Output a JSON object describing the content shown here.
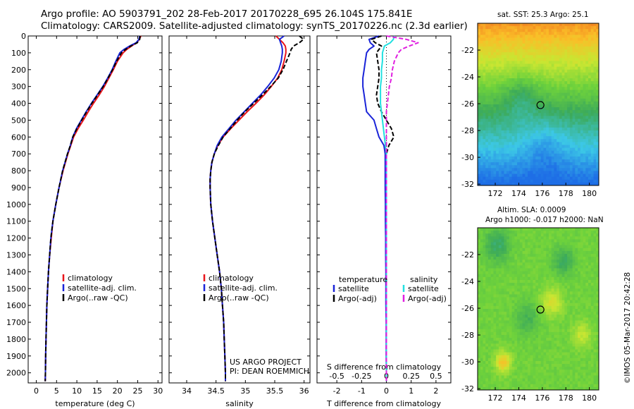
{
  "header": {
    "line1": "Argo profile: AO 5903791_202 28-Feb-2017 20170228_695 26.104S 175.841E",
    "line2": "Climatology: CARS2009. Satellite-adjusted climatology: synTS_20170226.nc (2.3d earlier)"
  },
  "colors": {
    "climatology": "#e8141a",
    "satellite": "#1a24d8",
    "argo": "#000000",
    "salinity_satellite": "#22e0e0",
    "salinity_argo": "#e020e0"
  },
  "chart_data": [
    {
      "type": "line",
      "id": "temperature",
      "xlabel": "temperature (deg C)",
      "xlim": [
        -2,
        31
      ],
      "ylim": [
        2060,
        0
      ],
      "x_ticks": [
        "0",
        "5",
        "10",
        "15",
        "20",
        "25",
        "30"
      ],
      "y_ticks": [
        "0",
        "100",
        "200",
        "300",
        "400",
        "500",
        "600",
        "700",
        "800",
        "900",
        "1000",
        "1100",
        "1200",
        "1300",
        "1400",
        "1500",
        "1600",
        "1700",
        "1800",
        "1900",
        "2000"
      ],
      "depth": [
        0,
        20,
        40,
        60,
        80,
        100,
        150,
        200,
        250,
        300,
        350,
        400,
        450,
        500,
        550,
        600,
        650,
        700,
        800,
        900,
        1000,
        1100,
        1200,
        1300,
        1400,
        1500,
        1600,
        1700,
        1800,
        1900,
        2000,
        2050
      ],
      "series": [
        {
          "name": "climatology",
          "values": [
            25.8,
            25.4,
            24.7,
            23.5,
            22.3,
            21.4,
            20.0,
            19.0,
            17.9,
            16.8,
            15.5,
            14.1,
            12.8,
            11.6,
            10.3,
            9.2,
            8.5,
            7.8,
            6.6,
            5.6,
            4.8,
            4.1,
            3.7,
            3.3,
            3.0,
            2.8,
            2.6,
            2.5,
            2.4,
            2.3,
            2.25,
            2.2
          ]
        },
        {
          "name": "satellite-adj. clim.",
          "values": [
            25.5,
            25.3,
            24.6,
            23.0,
            21.6,
            20.6,
            19.6,
            18.7,
            17.6,
            16.4,
            15.0,
            13.6,
            12.3,
            11.1,
            9.9,
            9.0,
            8.4,
            7.7,
            6.5,
            5.6,
            4.8,
            4.1,
            3.6,
            3.3,
            3.0,
            2.8,
            2.6,
            2.5,
            2.4,
            2.3,
            2.25,
            2.2
          ]
        },
        {
          "name": "Argo(..raw -QC)",
          "values": [
            25.6,
            25.5,
            24.9,
            23.3,
            22.0,
            21.0,
            19.8,
            18.8,
            17.7,
            16.5,
            15.1,
            13.7,
            12.4,
            11.2,
            10.0,
            9.0,
            8.4,
            7.7,
            6.5,
            5.6,
            4.8,
            4.1,
            3.6,
            3.3,
            3.0,
            2.8,
            2.6,
            2.5,
            2.4,
            2.3,
            2.25,
            2.2
          ]
        }
      ],
      "legend_position": "lower-center"
    },
    {
      "type": "line",
      "id": "salinity",
      "xlabel": "salinity",
      "xlim": [
        33.7,
        36.1
      ],
      "ylim": [
        2060,
        0
      ],
      "x_ticks": [
        "34",
        "34.5",
        "35",
        "35.5",
        "36"
      ],
      "depth": [
        0,
        20,
        40,
        60,
        80,
        100,
        150,
        200,
        250,
        300,
        350,
        400,
        450,
        500,
        550,
        600,
        650,
        700,
        750,
        800,
        850,
        900,
        1000,
        1100,
        1200,
        1300,
        1400,
        1500,
        1600,
        1700,
        1800,
        1900,
        2000,
        2050
      ],
      "series": [
        {
          "name": "climatology",
          "values": [
            35.52,
            35.58,
            35.64,
            35.68,
            35.69,
            35.69,
            35.66,
            35.62,
            35.55,
            35.44,
            35.32,
            35.18,
            35.03,
            34.89,
            34.75,
            34.62,
            34.53,
            34.47,
            34.43,
            34.41,
            34.4,
            34.4,
            34.41,
            34.44,
            34.48,
            34.52,
            34.56,
            34.59,
            34.61,
            34.63,
            34.64,
            34.65,
            34.66,
            34.66
          ]
        },
        {
          "name": "satellite-adj. clim.",
          "values": [
            35.66,
            35.58,
            35.6,
            35.62,
            35.63,
            35.63,
            35.61,
            35.57,
            35.49,
            35.38,
            35.26,
            35.12,
            34.98,
            34.84,
            34.72,
            34.6,
            34.52,
            34.47,
            34.43,
            34.41,
            34.4,
            34.4,
            34.41,
            34.44,
            34.48,
            34.52,
            34.56,
            34.59,
            34.61,
            34.63,
            34.64,
            34.65,
            34.66,
            34.66
          ]
        },
        {
          "name": "Argo(..raw -QC)",
          "values": [
            35.92,
            35.99,
            35.92,
            35.82,
            35.78,
            35.76,
            35.7,
            35.64,
            35.56,
            35.43,
            35.29,
            35.14,
            34.99,
            34.86,
            34.74,
            34.62,
            34.54,
            34.47,
            34.43,
            34.41,
            34.4,
            34.4,
            34.41,
            34.44,
            34.48,
            34.52,
            34.56,
            34.59,
            34.61,
            34.63,
            34.64,
            34.65,
            34.66,
            34.66
          ]
        }
      ],
      "legend_position": "lower-center",
      "annotation": [
        "US ARGO PROJECT",
        "PI: DEAN ROEMMICH"
      ]
    },
    {
      "type": "line",
      "id": "difference",
      "xlabel": "T difference from climatology",
      "xlabel_top": "S difference from climatology",
      "xlim": [
        -2.8,
        2.6
      ],
      "ylim": [
        2060,
        0
      ],
      "x_ticks": [
        "-2",
        "-1",
        "0",
        "1",
        "2"
      ],
      "x_ticks_top": [
        "-0.5",
        "-0.25",
        "0",
        "0.25",
        "0.5"
      ],
      "depth": [
        0,
        20,
        40,
        60,
        80,
        100,
        150,
        200,
        250,
        300,
        350,
        400,
        450,
        500,
        550,
        600,
        650,
        700,
        750,
        800,
        900,
        1000,
        1100,
        1200,
        1300,
        1400,
        1500,
        1600,
        1700,
        1800,
        1900,
        2000,
        2050
      ],
      "series": [
        {
          "name": "temperature satellite",
          "values": [
            -0.3,
            -0.7,
            -0.65,
            -0.5,
            -0.7,
            -0.8,
            -0.85,
            -0.9,
            -0.95,
            -0.95,
            -0.9,
            -0.85,
            -0.8,
            -0.5,
            -0.4,
            -0.3,
            -0.1,
            -0.05,
            -0.05,
            -0.05,
            -0.05,
            -0.04,
            -0.04,
            -0.03,
            -0.03,
            -0.02,
            -0.02,
            -0.02,
            -0.01,
            -0.01,
            -0.01,
            0,
            0
          ]
        },
        {
          "name": "temperature Argo(-adj)",
          "values": [
            -0.2,
            -0.6,
            -0.45,
            -0.2,
            -0.3,
            -0.4,
            -0.35,
            -0.3,
            -0.3,
            -0.35,
            -0.4,
            -0.35,
            -0.2,
            0.0,
            0.2,
            0.3,
            0.1,
            0.0,
            0.0,
            0.0,
            0.0,
            0.0,
            0.0,
            0.0,
            0.0,
            0.0,
            0.0,
            0.0,
            0.0,
            0.0,
            0.0,
            0.0,
            0.0
          ]
        },
        {
          "name": "salinity satellite",
          "values": [
            0.08,
            0.07,
            0.04,
            -0.02,
            -0.03,
            -0.04,
            -0.04,
            -0.05,
            -0.05,
            -0.06,
            -0.06,
            -0.06,
            -0.05,
            -0.04,
            -0.03,
            -0.02,
            -0.01,
            0.0,
            0.0,
            0.0,
            0.0,
            0.0,
            0.0,
            0.0,
            0.0,
            0.0,
            0.0,
            0.0,
            0.0,
            0.0,
            0.0,
            0.0,
            0.0
          ]
        },
        {
          "name": "salinity Argo(-adj)",
          "values": [
            0.0,
            0.2,
            0.32,
            0.23,
            0.15,
            0.12,
            0.08,
            0.06,
            0.05,
            0.03,
            0.02,
            0.01,
            0.0,
            0.0,
            0.0,
            0.0,
            0.0,
            0.0,
            0.0,
            0.0,
            0.0,
            0.0,
            0.0,
            0.0,
            0.0,
            0.0,
            0.0,
            0.0,
            0.0,
            0.0,
            0.0,
            0.0,
            0.0
          ]
        }
      ],
      "legend": {
        "temperature_title": "temperature",
        "salinity_title": "salinity",
        "satellite": "satellite",
        "argo": "Argo(-adj)"
      }
    },
    {
      "type": "heatmap",
      "id": "sst_map",
      "title": "sat. SST: 25.3 Argo: 25.1",
      "xlim": [
        170.5,
        180.8
      ],
      "ylim": [
        -32.1,
        -20.0
      ],
      "x_ticks": [
        "172",
        "174",
        "176",
        "178",
        "180"
      ],
      "y_ticks": [
        "-22",
        "-24",
        "-26",
        "-28",
        "-30",
        "-32"
      ],
      "profile_location": {
        "lon": 175.841,
        "lat": -26.104
      }
    },
    {
      "type": "heatmap",
      "id": "sla_map",
      "title": "Altim. SLA: 0.0009",
      "subtitle": "Argo h1000: -0.017 h2000: NaN",
      "xlim": [
        170.5,
        180.8
      ],
      "ylim": [
        -32.1,
        -20.0
      ],
      "x_ticks": [
        "172",
        "174",
        "176",
        "178",
        "180"
      ],
      "y_ticks": [
        "-22",
        "-24",
        "-26",
        "-28",
        "-30",
        "-32"
      ],
      "profile_location": {
        "lon": 175.841,
        "lat": -26.104
      }
    }
  ],
  "legend_labels": [
    "climatology",
    "satellite-adj. clim.",
    "Argo(..raw -QC)"
  ],
  "credit": "©IMOS 05-Mar-2017 20:42:28"
}
